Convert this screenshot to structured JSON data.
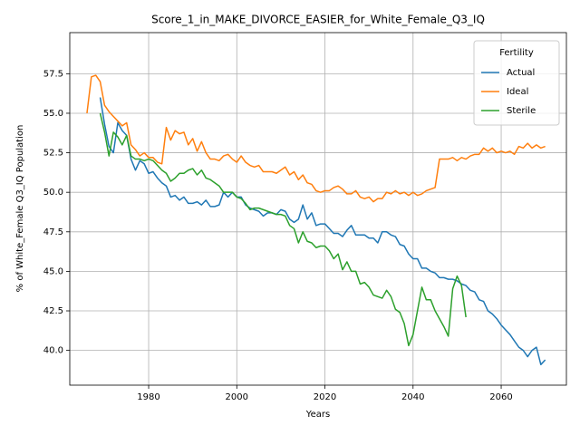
{
  "chart_data": {
    "type": "line",
    "title": "Score_1_in_MAKE_DIVORCE_EASIER_for_White_Female_Q3_IQ",
    "xlabel": "Years",
    "ylabel": "% of White_Female Q3_IQ Population",
    "legend_title": "Fertility",
    "legend_position": "upper right",
    "grid": true,
    "xlim": [
      1962.1,
      2074.8
    ],
    "ylim": [
      37.8,
      60.1
    ],
    "xticks": [
      1980,
      2000,
      2020,
      2040,
      2060
    ],
    "yticks": [
      {
        "value": 40,
        "label": "40.0"
      },
      42.5,
      {
        "value": 45,
        "label": "45.0"
      },
      47.5,
      {
        "value": 50,
        "label": "50.0"
      },
      52.5,
      {
        "value": 55,
        "label": "55.0"
      },
      57.5
    ],
    "x": [
      1966,
      1967,
      1968,
      1969,
      1970,
      1971,
      1972,
      1973,
      1974,
      1975,
      1976,
      1977,
      1978,
      1979,
      1980,
      1981,
      1982,
      1983,
      1984,
      1985,
      1986,
      1987,
      1988,
      1989,
      1990,
      1991,
      1992,
      1993,
      1994,
      1995,
      1996,
      1997,
      1998,
      1999,
      2000,
      2001,
      2002,
      2003,
      2004,
      2005,
      2006,
      2007,
      2008,
      2009,
      2010,
      2011,
      2012,
      2013,
      2014,
      2015,
      2016,
      2017,
      2018,
      2019,
      2020,
      2021,
      2022,
      2023,
      2024,
      2025,
      2026,
      2027,
      2028,
      2029,
      2030,
      2031,
      2032,
      2033,
      2034,
      2035,
      2036,
      2037,
      2038,
      2039,
      2040,
      2041,
      2042,
      2043,
      2044,
      2045,
      2046,
      2047,
      2048,
      2049,
      2050,
      2051,
      2052,
      2053,
      2054,
      2055,
      2056,
      2057,
      2058,
      2059,
      2060,
      2061,
      2062,
      2063,
      2064,
      2065,
      2066,
      2067,
      2068,
      2069,
      2070
    ],
    "series": [
      {
        "name": "Actual",
        "color": "#1f77b4",
        "values": [
          null,
          null,
          null,
          56.0,
          54.3,
          52.9,
          52.5,
          54.4,
          53.9,
          53.6,
          52.1,
          51.4,
          52.0,
          51.8,
          51.2,
          51.3,
          50.9,
          50.6,
          50.4,
          49.7,
          49.8,
          49.5,
          49.7,
          49.3,
          49.3,
          49.4,
          49.2,
          49.5,
          49.1,
          49.1,
          49.2,
          50.0,
          49.7,
          50.0,
          49.7,
          49.7,
          49.2,
          49.0,
          48.9,
          48.8,
          48.5,
          48.7,
          48.7,
          48.6,
          48.9,
          48.8,
          48.3,
          48.1,
          48.3,
          49.2,
          48.3,
          48.7,
          47.9,
          48.0,
          48.0,
          47.7,
          47.4,
          47.4,
          47.2,
          47.6,
          47.9,
          47.3,
          47.3,
          47.3,
          47.1,
          47.1,
          46.8,
          47.5,
          47.5,
          47.3,
          47.2,
          46.7,
          46.6,
          46.1,
          45.8,
          45.8,
          45.2,
          45.2,
          45.0,
          44.9,
          44.6,
          44.6,
          44.5,
          44.5,
          44.4,
          44.2,
          44.1,
          43.8,
          43.7,
          43.2,
          43.1,
          42.5,
          42.3,
          42.0,
          41.6,
          41.3,
          41.0,
          40.6,
          40.2,
          40.0,
          39.6,
          40.0,
          40.2,
          39.1,
          39.4
        ]
      },
      {
        "name": "Ideal",
        "color": "#ff7f0e",
        "values": [
          55.0,
          57.3,
          57.4,
          57.0,
          55.5,
          55.1,
          54.8,
          54.5,
          54.2,
          54.4,
          53.0,
          52.7,
          52.3,
          52.5,
          52.2,
          52.2,
          51.9,
          51.8,
          54.1,
          53.3,
          53.9,
          53.7,
          53.8,
          53.0,
          53.4,
          52.6,
          53.2,
          52.5,
          52.1,
          52.1,
          52.0,
          52.3,
          52.4,
          52.1,
          51.9,
          52.3,
          51.9,
          51.7,
          51.6,
          51.7,
          51.3,
          51.3,
          51.3,
          51.2,
          51.4,
          51.6,
          51.1,
          51.3,
          50.8,
          51.1,
          50.6,
          50.5,
          50.1,
          50.0,
          50.1,
          50.1,
          50.3,
          50.4,
          50.2,
          49.9,
          49.9,
          50.1,
          49.7,
          49.6,
          49.7,
          49.4,
          49.6,
          49.6,
          50.0,
          49.9,
          50.1,
          49.9,
          50.0,
          49.8,
          50.0,
          49.8,
          49.9,
          50.1,
          50.2,
          50.3,
          52.1,
          52.1,
          52.1,
          52.2,
          52.0,
          52.2,
          52.1,
          52.3,
          52.4,
          52.4,
          52.8,
          52.6,
          52.8,
          52.5,
          52.6,
          52.5,
          52.6,
          52.4,
          52.9,
          52.8,
          53.1,
          52.8,
          53.0,
          52.8,
          52.9
        ]
      },
      {
        "name": "Sterile",
        "color": "#2ca02c",
        "values": [
          null,
          null,
          null,
          55.0,
          53.8,
          52.3,
          53.8,
          53.5,
          53.0,
          53.6,
          52.3,
          52.1,
          52.1,
          52.0,
          52.1,
          52.0,
          51.7,
          51.4,
          51.2,
          50.7,
          50.9,
          51.2,
          51.2,
          51.4,
          51.5,
          51.1,
          51.4,
          50.9,
          50.8,
          50.6,
          50.4,
          50.0,
          50.0,
          50.0,
          49.7,
          49.6,
          49.3,
          48.9,
          49.0,
          49.0,
          48.9,
          48.8,
          48.7,
          48.6,
          48.6,
          48.5,
          47.9,
          47.7,
          46.8,
          47.5,
          46.9,
          46.8,
          46.5,
          46.6,
          46.6,
          46.3,
          45.8,
          46.1,
          45.1,
          45.6,
          45.0,
          45.0,
          44.2,
          44.3,
          44.0,
          43.5,
          43.4,
          43.3,
          43.8,
          43.4,
          42.6,
          42.4,
          41.7,
          40.3,
          41.0,
          42.5,
          44.0,
          43.2,
          43.2,
          42.5,
          42.0,
          41.5,
          40.9,
          43.9,
          44.7,
          44.1,
          42.1,
          null,
          null,
          null,
          null,
          null,
          null,
          null,
          null,
          null,
          null,
          null,
          null,
          null,
          null,
          null,
          null,
          null,
          null
        ]
      }
    ]
  }
}
